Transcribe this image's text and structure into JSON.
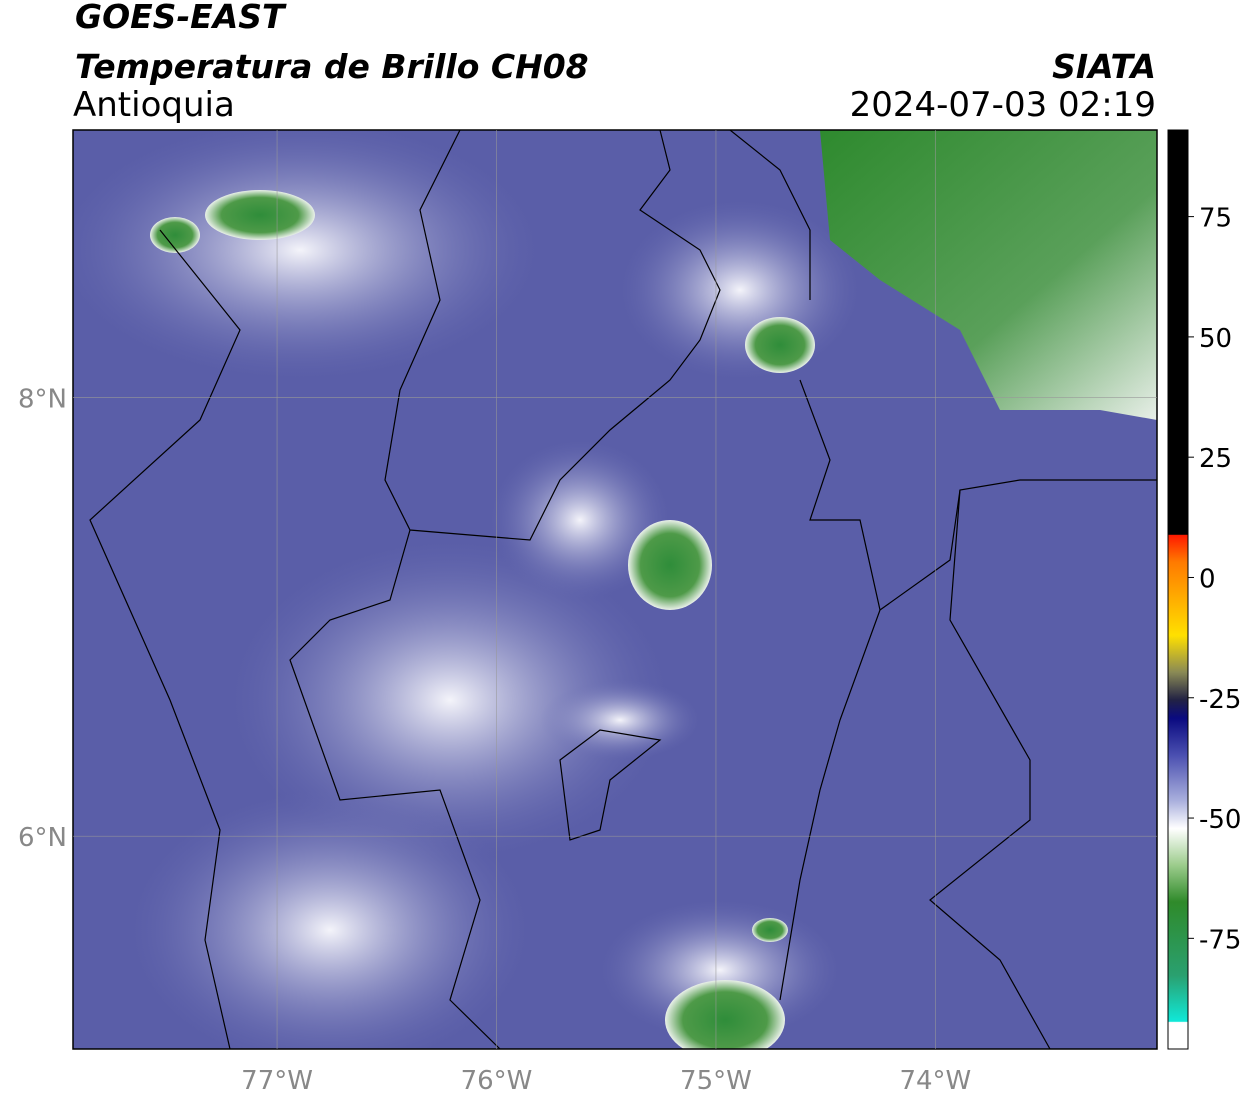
{
  "header": {
    "satellite": "GOES-EAST",
    "product": "Temperatura de Brillo CH08",
    "region": "Antioquia",
    "source": "SIATA",
    "datetime": "2024-07-03 02:19"
  },
  "map": {
    "xlim": [
      -77.93,
      -72.99
    ],
    "ylim": [
      5.03,
      9.22
    ],
    "xticks": [
      {
        "value": -77,
        "label": "77°W"
      },
      {
        "value": -76,
        "label": "76°W"
      },
      {
        "value": -75,
        "label": "75°W"
      },
      {
        "value": -74,
        "label": "74°W"
      }
    ],
    "yticks": [
      {
        "value": 8,
        "label": "8°N"
      },
      {
        "value": 6,
        "label": "6°N"
      }
    ],
    "grid": true
  },
  "colorbar": {
    "lim": [
      -98,
      93
    ],
    "ticks": [
      75,
      50,
      25,
      0,
      -25,
      -50,
      -75
    ]
  }
}
